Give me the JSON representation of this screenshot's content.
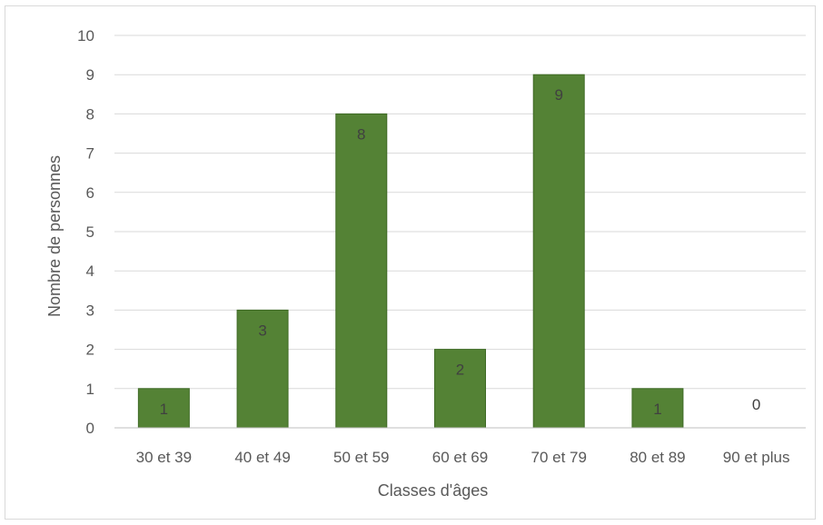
{
  "chart_data": {
    "type": "bar",
    "categories": [
      "30 et 39",
      "40 et 49",
      "50 et 59",
      "60 et 69",
      "70 et 79",
      "80 et 89",
      "90 et plus"
    ],
    "values": [
      1,
      3,
      8,
      2,
      9,
      1,
      0
    ],
    "data_labels": [
      "1",
      "3",
      "8",
      "2",
      "9",
      "1",
      "0"
    ],
    "xlabel": "Classes d'âges",
    "ylabel": "Nombre de personnes",
    "ylim": [
      0,
      10
    ],
    "yticks": [
      "0",
      "1",
      "2",
      "3",
      "4",
      "5",
      "6",
      "7",
      "8",
      "9",
      "10"
    ],
    "grid": true,
    "legend": "none",
    "bar_color": "#548235",
    "bar_border_color": "#3f6b26",
    "grid_color": "#d9d9d9",
    "axis_color": "#bfbfbf"
  }
}
